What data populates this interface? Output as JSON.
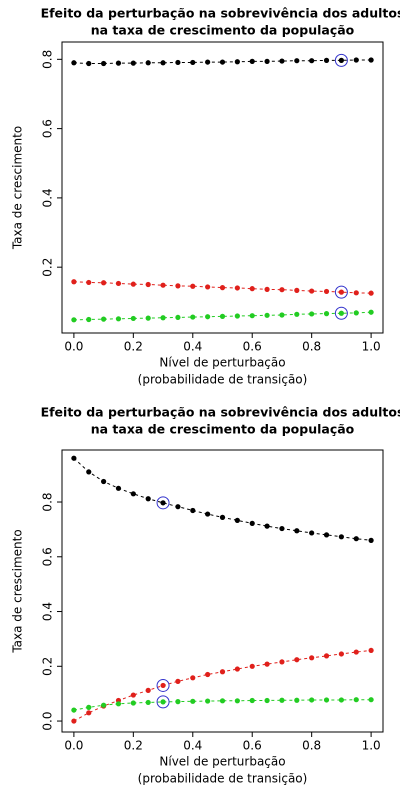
{
  "chart_data": [
    {
      "type": "scatter-line",
      "title": [
        "Efeito da perturbação na sobrevivência dos adultos",
        "na taxa de crescimento da população"
      ],
      "xlabel": [
        "Nível de perturbação",
        "(probabilidade de transição)"
      ],
      "ylabel": "Taxa de crescimento",
      "x": [
        0,
        0.05,
        0.1,
        0.15,
        0.2,
        0.25,
        0.3,
        0.35,
        0.4,
        0.45,
        0.5,
        0.55,
        0.6,
        0.65,
        0.7,
        0.75,
        0.8,
        0.85,
        0.9,
        0.95,
        1
      ],
      "series": [
        {
          "color": "#000000",
          "values": [
            0.79,
            0.788,
            0.788,
            0.789,
            0.789,
            0.79,
            0.79,
            0.791,
            0.791,
            0.792,
            0.792,
            0.793,
            0.794,
            0.794,
            0.795,
            0.796,
            0.796,
            0.797,
            0.797,
            0.798,
            0.798
          ]
        },
        {
          "color": "#e0201b",
          "values": [
            0.158,
            0.156,
            0.155,
            0.153,
            0.151,
            0.15,
            0.148,
            0.146,
            0.145,
            0.143,
            0.141,
            0.14,
            0.138,
            0.136,
            0.135,
            0.133,
            0.131,
            0.13,
            0.128,
            0.126,
            0.125
          ]
        },
        {
          "color": "#22cc22",
          "values": [
            0.048,
            0.049,
            0.05,
            0.051,
            0.052,
            0.053,
            0.054,
            0.055,
            0.056,
            0.057,
            0.058,
            0.059,
            0.06,
            0.061,
            0.062,
            0.064,
            0.065,
            0.066,
            0.067,
            0.068,
            0.07
          ]
        }
      ],
      "highlight_x": 0.9,
      "highlight_color": "#3333cc",
      "xlim": [
        -0.04,
        1.04
      ],
      "ylim": [
        0.01,
        0.85
      ],
      "xticks": [
        {
          "value": 0,
          "label": "0.0"
        },
        0.2,
        0.4,
        0.6,
        0.8,
        {
          "value": 1,
          "label": "1.0"
        }
      ],
      "yticks": [
        0.2,
        0.4,
        0.6,
        0.8
      ]
    },
    {
      "type": "scatter-line",
      "title": [
        "Efeito da perturbação na sobrevivência dos adultos",
        "na taxa de crescimento da população"
      ],
      "xlabel": [
        "Nível de perturbação",
        "(probabilidade de transição)"
      ],
      "ylabel": "Taxa de crescimento",
      "x": [
        0,
        0.05,
        0.1,
        0.15,
        0.2,
        0.25,
        0.3,
        0.35,
        0.4,
        0.45,
        0.5,
        0.55,
        0.6,
        0.65,
        0.7,
        0.75,
        0.8,
        0.85,
        0.9,
        0.95,
        1
      ],
      "series": [
        {
          "color": "#000000",
          "values": [
            0.96,
            0.91,
            0.875,
            0.85,
            0.83,
            0.812,
            0.797,
            0.783,
            0.769,
            0.756,
            0.744,
            0.733,
            0.722,
            0.712,
            0.703,
            0.695,
            0.687,
            0.68,
            0.673,
            0.666,
            0.66
          ]
        },
        {
          "color": "#e0201b",
          "values": [
            0,
            0.03,
            0.055,
            0.075,
            0.095,
            0.112,
            0.13,
            0.145,
            0.158,
            0.17,
            0.18,
            0.19,
            0.2,
            0.208,
            0.216,
            0.224,
            0.231,
            0.238,
            0.245,
            0.252,
            0.258
          ]
        },
        {
          "color": "#22cc22",
          "values": [
            0.04,
            0.05,
            0.058,
            0.063,
            0.066,
            0.068,
            0.07,
            0.071,
            0.072,
            0.073,
            0.074,
            0.074,
            0.075,
            0.075,
            0.076,
            0.076,
            0.077,
            0.077,
            0.077,
            0.078,
            0.078
          ]
        }
      ],
      "highlight_x": 0.3,
      "highlight_color": "#3333cc",
      "xlim": [
        -0.04,
        1.04
      ],
      "ylim": [
        -0.04,
        0.99
      ],
      "xticks": [
        {
          "value": 0,
          "label": "0.0"
        },
        0.2,
        0.4,
        0.6,
        0.8,
        {
          "value": 1,
          "label": "1.0"
        }
      ],
      "yticks": [
        {
          "value": 0,
          "label": "0.0"
        },
        0.2,
        0.4,
        0.6,
        0.8
      ]
    }
  ]
}
